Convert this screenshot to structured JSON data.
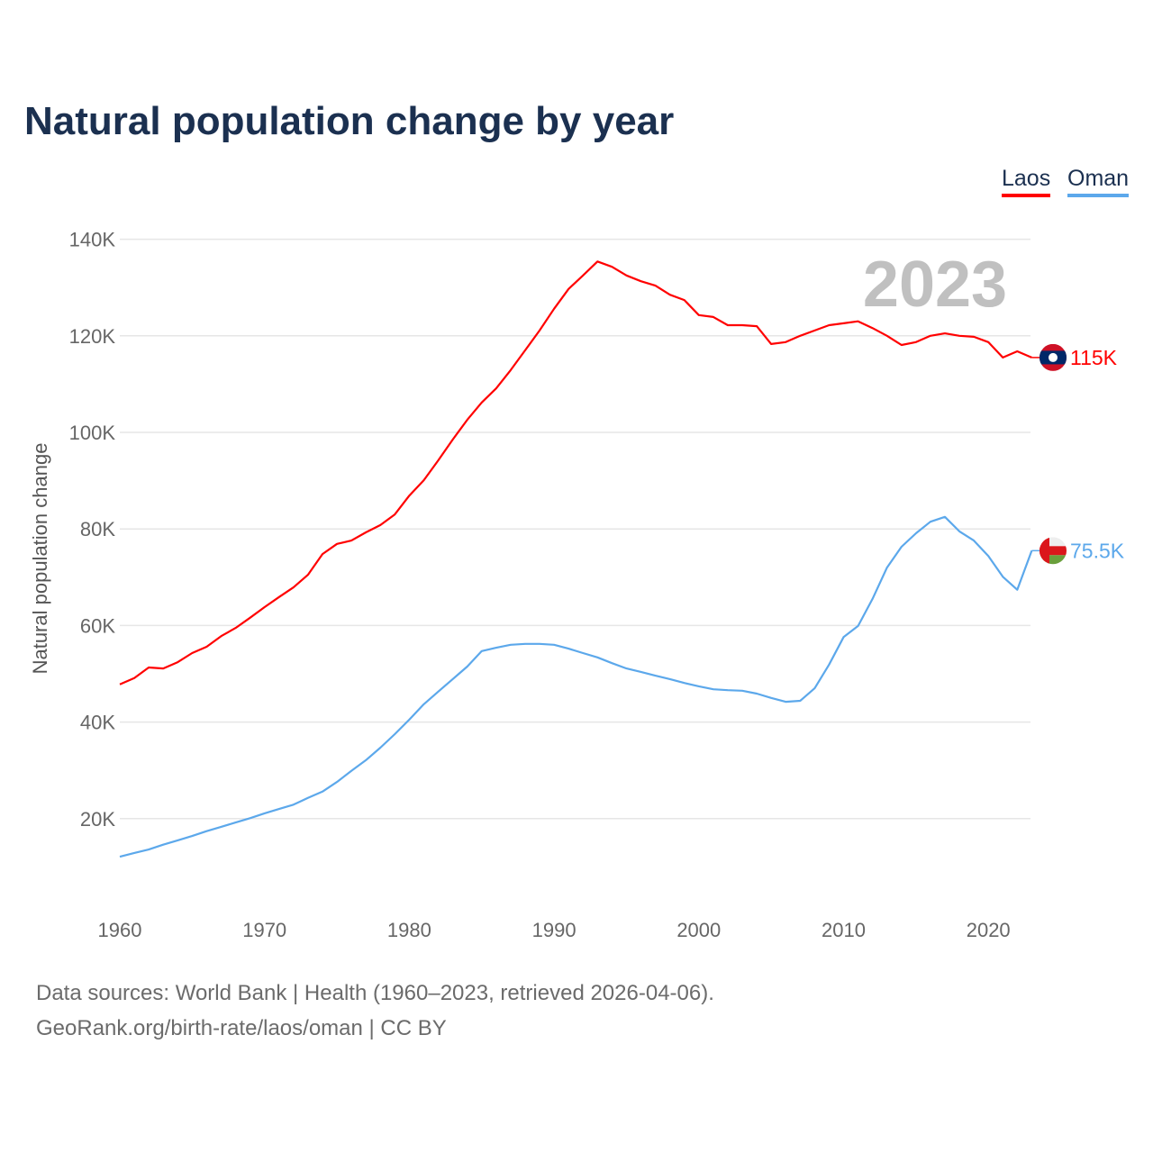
{
  "title": "Natural population change by year",
  "legend": [
    {
      "label": "Laos",
      "color": "#ff0000"
    },
    {
      "label": "Oman",
      "color": "#5ca8eb"
    }
  ],
  "year_label": "2023",
  "footer": {
    "line1": "Data sources: World Bank | Health (1960–2023, retrieved 2026-04-06).",
    "line2": "GeoRank.org/birth-rate/laos/oman | CC BY"
  },
  "chart_data": {
    "type": "line",
    "title": "Natural population change by year",
    "xlabel": "",
    "ylabel": "Natural population change",
    "xlim": [
      1960,
      2023
    ],
    "ylim": [
      0,
      140000
    ],
    "x_ticks": [
      1960,
      1970,
      1980,
      1990,
      2000,
      2010,
      2020
    ],
    "x_tick_labels": [
      "1960",
      "1970",
      "1980",
      "1990",
      "2000",
      "2010",
      "2020"
    ],
    "y_ticks": [
      20000,
      40000,
      60000,
      80000,
      100000,
      120000,
      140000
    ],
    "y_tick_labels": [
      "20K",
      "40K",
      "60K",
      "80K",
      "100K",
      "120K",
      "140K"
    ],
    "grid": true,
    "legend_position": "top-right",
    "x_start": 1960,
    "series": [
      {
        "name": "Laos",
        "color": "#ff0000",
        "end_label": "115K",
        "flag": "laos-flag",
        "values": [
          47800,
          49100,
          51300,
          51100,
          52400,
          54300,
          55600,
          57800,
          59500,
          61600,
          63800,
          65900,
          67900,
          70500,
          74800,
          76900,
          77600,
          79300,
          80800,
          83000,
          86900,
          90100,
          94200,
          98500,
          102600,
          106200,
          109100,
          112900,
          117000,
          121100,
          125600,
          129700,
          132500,
          135400,
          134300,
          132500,
          131300,
          130400,
          128500,
          127400,
          124300,
          123900,
          122200,
          122200,
          122000,
          118300,
          118700,
          120000,
          121100,
          122200,
          122600,
          123000,
          121600,
          120000,
          118100,
          118700,
          120000,
          120500,
          120000,
          119800,
          118700,
          115500,
          116800,
          115500
        ]
      },
      {
        "name": "Oman",
        "color": "#5ca8eb",
        "end_label": "75.5K",
        "flag": "oman-flag",
        "values": [
          12100,
          12900,
          13600,
          14600,
          15500,
          16400,
          17400,
          18300,
          19200,
          20100,
          21100,
          22000,
          22900,
          24300,
          25600,
          27600,
          29900,
          32100,
          34700,
          37500,
          40500,
          43700,
          46300,
          48900,
          51500,
          54700,
          55400,
          56000,
          56200,
          56200,
          56000,
          55200,
          54300,
          53400,
          52200,
          51100,
          50400,
          49600,
          48900,
          48100,
          47400,
          46800,
          46600,
          46500,
          45900,
          45000,
          44200,
          44400,
          47000,
          51900,
          57600,
          59900,
          65500,
          72000,
          76300,
          79100,
          81500,
          82500,
          79500,
          77600,
          74400,
          70100,
          67400,
          75500
        ]
      }
    ]
  }
}
